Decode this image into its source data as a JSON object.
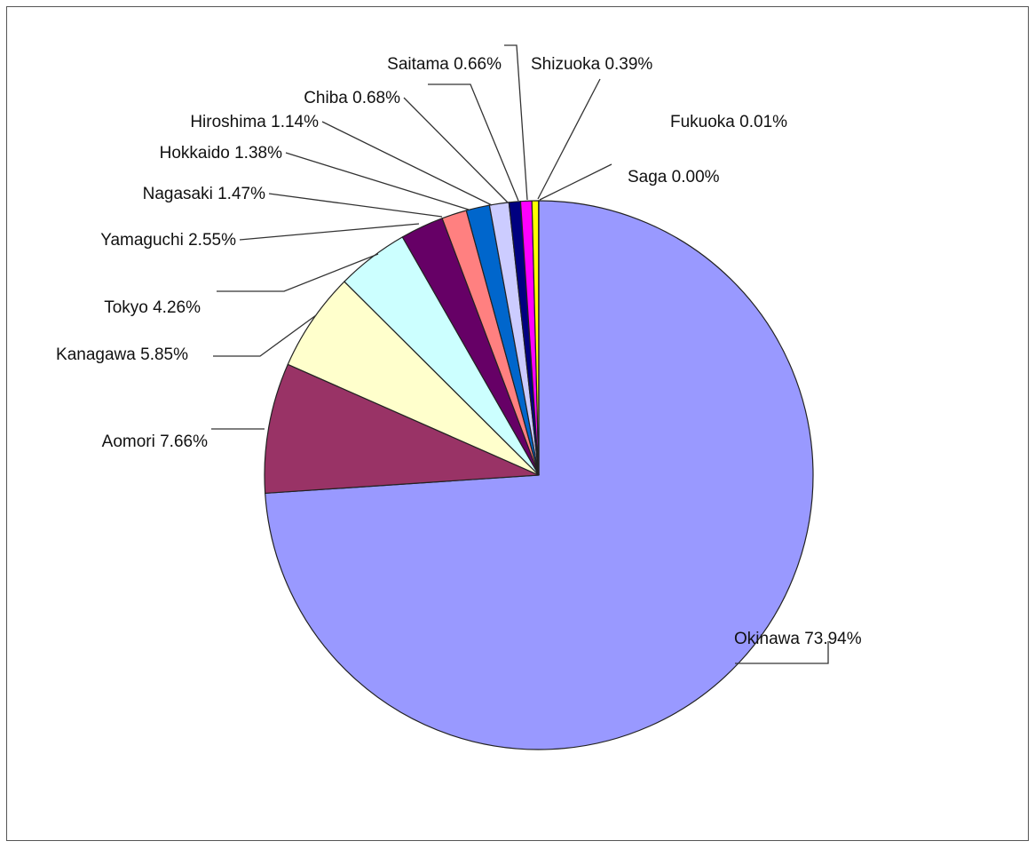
{
  "chart_data": {
    "type": "pie",
    "start": "12 o'clock",
    "direction": "clockwise",
    "slices": [
      {
        "name": "Okinawa",
        "value": 73.94,
        "label": "Okinawa 73.94%",
        "color": "#9999ff"
      },
      {
        "name": "Aomori",
        "value": 7.66,
        "label": "Aomori 7.66%",
        "color": "#993366"
      },
      {
        "name": "Kanagawa",
        "value": 5.85,
        "label": "Kanagawa 5.85%",
        "color": "#ffffcc"
      },
      {
        "name": "Tokyo",
        "value": 4.26,
        "label": "Tokyo 4.26%",
        "color": "#ccffff"
      },
      {
        "name": "Yamaguchi",
        "value": 2.55,
        "label": "Yamaguchi 2.55%",
        "color": "#660066"
      },
      {
        "name": "Nagasaki",
        "value": 1.47,
        "label": "Nagasaki 1.47%",
        "color": "#ff8080"
      },
      {
        "name": "Hokkaido",
        "value": 1.38,
        "label": "Hokkaido 1.38%",
        "color": "#0066cc"
      },
      {
        "name": "Hiroshima",
        "value": 1.14,
        "label": "Hiroshima 1.14%",
        "color": "#ccccff"
      },
      {
        "name": "Chiba",
        "value": 0.68,
        "label": "Chiba 0.68%",
        "color": "#000080"
      },
      {
        "name": "Saitama",
        "value": 0.66,
        "label": "Saitama 0.66%",
        "color": "#ff00ff"
      },
      {
        "name": "Shizuoka",
        "value": 0.39,
        "label": "Shizuoka 0.39%",
        "color": "#ffff00"
      },
      {
        "name": "Fukuoka",
        "value": 0.01,
        "label": "Fukuoka 0.01%",
        "color": "#00ffff"
      },
      {
        "name": "Saga",
        "value": 0.0,
        "label": "Saga 0.00%",
        "color": "#800080"
      }
    ]
  }
}
